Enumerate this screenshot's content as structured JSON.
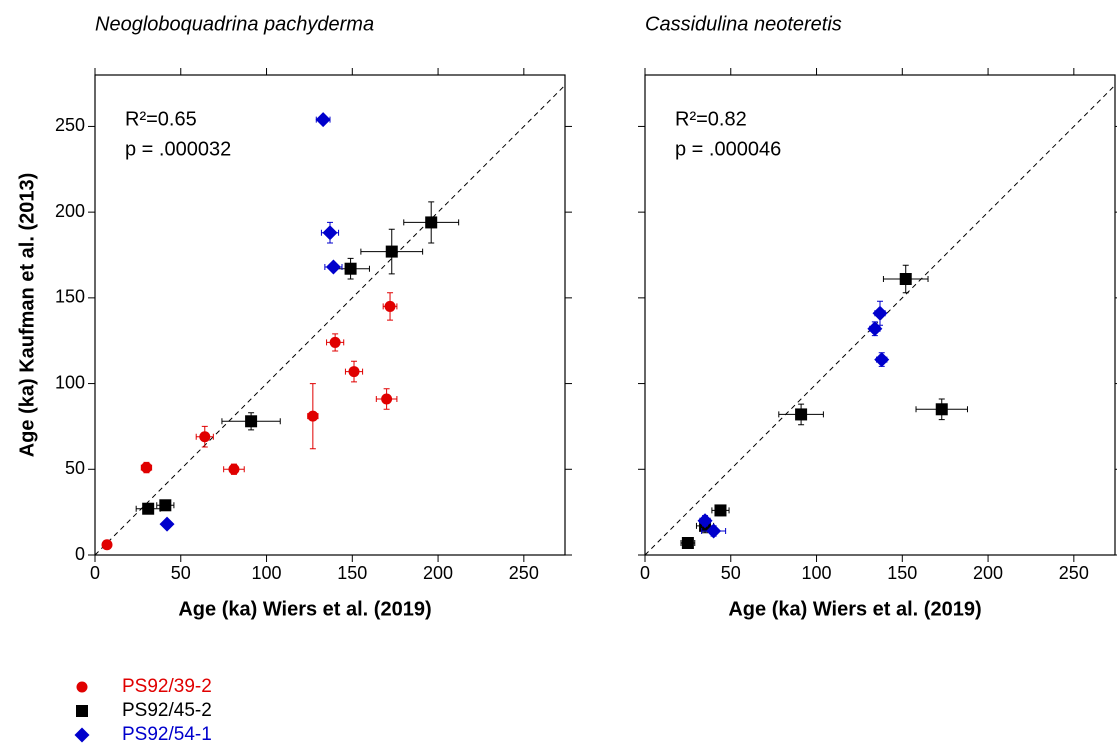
{
  "chart_data": [
    {
      "type": "scatter",
      "title": "Neogloboquadrina pachyderma",
      "x_label": "Age (ka) Wiers et al. (2019)",
      "y_label": "Age (ka) Kaufman et al. (2013)",
      "annotations": [
        "R²=0.65",
        "p = .000032"
      ],
      "xlim": [
        0,
        274
      ],
      "ylim": [
        0,
        280
      ],
      "xticks": [
        0,
        50,
        100,
        150,
        200,
        250
      ],
      "yticks": [
        0,
        50,
        100,
        150,
        200,
        250
      ],
      "identity_line": true,
      "series": [
        {
          "name": "PS92/39-2",
          "color": "#e00000",
          "marker": "circle",
          "x": [
            7,
            30,
            64,
            81,
            127,
            140,
            151,
            172,
            170
          ],
          "values": [
            6,
            51,
            69,
            50,
            81,
            124,
            107,
            145,
            91
          ],
          "xerr": [
            2,
            3,
            5,
            6,
            3,
            5,
            5,
            4,
            6
          ],
          "yerr": [
            1,
            3,
            6,
            3,
            19,
            5,
            6,
            8,
            6
          ]
        },
        {
          "name": "PS92/45-2",
          "color": "#000000",
          "marker": "square",
          "x": [
            31,
            41,
            91,
            149,
            173,
            196
          ],
          "values": [
            27,
            29,
            78,
            167,
            177,
            194
          ],
          "xerr": [
            7,
            5,
            17,
            11,
            18,
            16
          ],
          "yerr": [
            3,
            3,
            5,
            6,
            13,
            12
          ]
        },
        {
          "name": "PS92/54-1",
          "color": "#0000cc",
          "marker": "diamond",
          "x": [
            133,
            137,
            139,
            42
          ],
          "values": [
            254,
            188,
            168,
            18
          ],
          "xerr": [
            4,
            5,
            5,
            2
          ],
          "yerr": [
            2,
            6,
            2,
            2
          ]
        }
      ]
    },
    {
      "type": "scatter",
      "title": "Cassidulina neoteretis",
      "x_label": "Age (ka) Wiers et al. (2019)",
      "annotations": [
        "R²=0.82",
        "p = .000046"
      ],
      "xlim": [
        0,
        274
      ],
      "ylim": [
        0,
        280
      ],
      "xticks": [
        0,
        50,
        100,
        150,
        200,
        250
      ],
      "yticks": [
        0,
        50,
        100,
        150,
        200,
        250
      ],
      "identity_line": true,
      "series": [
        {
          "color": "#000000",
          "marker": "square",
          "x": [
            25,
            35,
            44,
            91,
            152,
            173
          ],
          "values": [
            7,
            17,
            26,
            82,
            161,
            85
          ],
          "xerr": [
            4,
            5,
            5,
            13,
            13,
            15
          ],
          "yerr": [
            3,
            4,
            3,
            6,
            8,
            6
          ]
        },
        {
          "color": "#0000cc",
          "marker": "diamond",
          "x": [
            35,
            40,
            134,
            137,
            138
          ],
          "values": [
            20,
            14,
            132,
            141,
            114
          ],
          "xerr": [
            3,
            7,
            3,
            3,
            3
          ],
          "yerr": [
            3,
            3,
            4,
            7,
            4
          ]
        }
      ]
    }
  ]
}
